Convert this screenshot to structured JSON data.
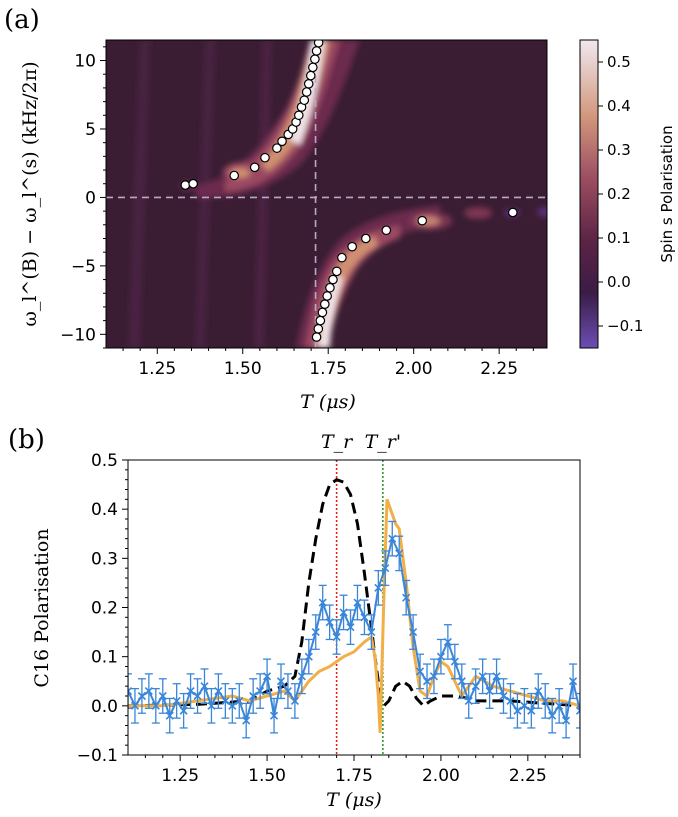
{
  "figure": {
    "panel_a_label": "(a)",
    "panel_b_label": "(b)"
  },
  "chart_data": [
    {
      "type": "heatmap",
      "panel": "(a)",
      "xlabel": "T (μs)",
      "ylabel": "ω_l^(B) − ω_l^(s) (kHz/2π)",
      "colorbar_label": "Spin s Polarisation",
      "xlim": [
        1.1,
        2.39
      ],
      "ylim": [
        -11,
        11.5
      ],
      "xticks": [
        "1.25",
        "1.50",
        "1.75",
        "2.00",
        "2.25"
      ],
      "xtick_values": [
        1.25,
        1.5,
        1.75,
        2.0,
        2.25
      ],
      "yticks": [
        "10",
        "5",
        "0",
        "−5",
        "−10"
      ],
      "ytick_values": [
        10,
        5,
        0,
        -5,
        -10
      ],
      "colorbar_ticks": [
        "0.5",
        "0.4",
        "0.3",
        "0.2",
        "0.1",
        "0.0",
        "−0.1"
      ],
      "colorbar_tick_values": [
        0.5,
        0.4,
        0.3,
        0.2,
        0.1,
        0.0,
        -0.1
      ],
      "colorbar_range": [
        -0.15,
        0.55
      ],
      "colors": {
        "background": "#3a1d33",
        "low": "#5a2f74",
        "mid": "#9b4a64",
        "high": "#d49a78",
        "peak": "#f1e6ec"
      },
      "reference_lines": {
        "x": 1.713,
        "y": 0
      },
      "points": [
        {
          "x": 1.332,
          "y": 0.9
        },
        {
          "x": 1.355,
          "y": 1.0
        },
        {
          "x": 1.475,
          "y": 1.6
        },
        {
          "x": 1.535,
          "y": 2.2
        },
        {
          "x": 1.565,
          "y": 2.9
        },
        {
          "x": 1.6,
          "y": 3.6
        },
        {
          "x": 1.615,
          "y": 4.1
        },
        {
          "x": 1.633,
          "y": 4.6
        },
        {
          "x": 1.646,
          "y": 5.0
        },
        {
          "x": 1.656,
          "y": 5.5
        },
        {
          "x": 1.664,
          "y": 6.0
        },
        {
          "x": 1.672,
          "y": 6.6
        },
        {
          "x": 1.68,
          "y": 7.1
        },
        {
          "x": 1.687,
          "y": 7.7
        },
        {
          "x": 1.693,
          "y": 8.3
        },
        {
          "x": 1.699,
          "y": 8.9
        },
        {
          "x": 1.705,
          "y": 9.5
        },
        {
          "x": 1.711,
          "y": 10.1
        },
        {
          "x": 1.716,
          "y": 10.7
        },
        {
          "x": 1.722,
          "y": 11.3
        },
        {
          "x": 1.716,
          "y": -10.2
        },
        {
          "x": 1.721,
          "y": -9.6
        },
        {
          "x": 1.727,
          "y": -9.0
        },
        {
          "x": 1.733,
          "y": -8.4
        },
        {
          "x": 1.74,
          "y": -7.8
        },
        {
          "x": 1.747,
          "y": -7.2
        },
        {
          "x": 1.755,
          "y": -6.6
        },
        {
          "x": 1.764,
          "y": -6.0
        },
        {
          "x": 1.775,
          "y": -5.4
        },
        {
          "x": 1.79,
          "y": -4.4
        },
        {
          "x": 1.82,
          "y": -3.6
        },
        {
          "x": 1.86,
          "y": -3.0
        },
        {
          "x": 1.92,
          "y": -2.4
        },
        {
          "x": 2.025,
          "y": -1.7
        },
        {
          "x": 2.29,
          "y": -1.1
        }
      ]
    },
    {
      "type": "line",
      "panel": "(b)",
      "xlabel": "T (μs)",
      "ylabel": "C16 Polarisation",
      "xlim": [
        1.1,
        2.4
      ],
      "ylim": [
        -0.1,
        0.5
      ],
      "xticks": [
        "1.25",
        "1.50",
        "1.75",
        "2.00",
        "2.25"
      ],
      "xtick_values": [
        1.25,
        1.5,
        1.75,
        2.0,
        2.25
      ],
      "yticks": [
        "0.5",
        "0.4",
        "0.3",
        "0.2",
        "0.1",
        "0.0",
        "−0.1"
      ],
      "ytick_values": [
        0.5,
        0.4,
        0.3,
        0.2,
        0.1,
        0.0,
        -0.1
      ],
      "annotations": [
        {
          "label": "T_r",
          "x": 1.7,
          "color": "#e0241c"
        },
        {
          "label": "T_r'",
          "x": 1.833,
          "color": "#2f9a2f"
        }
      ],
      "series": [
        {
          "style": "dashed",
          "color": "#000000",
          "x": [
            1.1,
            1.3,
            1.45,
            1.5,
            1.55,
            1.58,
            1.6,
            1.62,
            1.64,
            1.66,
            1.68,
            1.7,
            1.72,
            1.74,
            1.76,
            1.78,
            1.8,
            1.81,
            1.82,
            1.83,
            1.84,
            1.85,
            1.87,
            1.89,
            1.91,
            1.93,
            1.95,
            1.97,
            2.0,
            2.05,
            2.1,
            2.2,
            2.3,
            2.4
          ],
          "y": [
            0.0,
            0.003,
            0.01,
            0.03,
            0.04,
            0.06,
            0.13,
            0.25,
            0.34,
            0.41,
            0.45,
            0.46,
            0.455,
            0.43,
            0.37,
            0.27,
            0.16,
            0.1,
            0.05,
            0.01,
            0.003,
            0.01,
            0.04,
            0.05,
            0.04,
            0.015,
            0.0,
            0.01,
            0.02,
            0.02,
            0.01,
            0.01,
            0.005,
            0.0
          ]
        },
        {
          "style": "solid",
          "color": "#f2ae47",
          "x": [
            1.1,
            1.2,
            1.3,
            1.4,
            1.45,
            1.5,
            1.55,
            1.58,
            1.6,
            1.62,
            1.65,
            1.68,
            1.7,
            1.72,
            1.75,
            1.78,
            1.8,
            1.81,
            1.82,
            1.825,
            1.835,
            1.845,
            1.855,
            1.87,
            1.88,
            1.9,
            1.92,
            1.94,
            1.96,
            1.98,
            2.0,
            2.02,
            2.04,
            2.06,
            2.08,
            2.1,
            2.15,
            2.2,
            2.25,
            2.3,
            2.35,
            2.4
          ],
          "y": [
            0.0,
            0.0,
            0.01,
            0.02,
            0.01,
            0.02,
            0.03,
            0.01,
            0.03,
            0.05,
            0.07,
            0.08,
            0.09,
            0.1,
            0.11,
            0.13,
            0.14,
            0.1,
            0.02,
            -0.055,
            0.2,
            0.42,
            0.4,
            0.37,
            0.36,
            0.25,
            0.12,
            0.03,
            0.02,
            0.06,
            0.09,
            0.08,
            0.05,
            0.02,
            0.04,
            0.06,
            0.04,
            0.03,
            0.02,
            0.01,
            0.01,
            0.0
          ]
        },
        {
          "style": "markers-errorbars",
          "color": "#3a86d9",
          "x": [
            1.1,
            1.12,
            1.14,
            1.16,
            1.18,
            1.2,
            1.22,
            1.24,
            1.26,
            1.28,
            1.3,
            1.32,
            1.34,
            1.36,
            1.38,
            1.4,
            1.42,
            1.44,
            1.46,
            1.48,
            1.5,
            1.52,
            1.54,
            1.56,
            1.58,
            1.6,
            1.62,
            1.64,
            1.66,
            1.68,
            1.7,
            1.72,
            1.74,
            1.76,
            1.78,
            1.8,
            1.82,
            1.84,
            1.86,
            1.88,
            1.9,
            1.92,
            1.94,
            1.96,
            1.98,
            2.0,
            2.02,
            2.04,
            2.06,
            2.08,
            2.1,
            2.12,
            2.14,
            2.16,
            2.18,
            2.2,
            2.22,
            2.24,
            2.26,
            2.28,
            2.3,
            2.32,
            2.34,
            2.36,
            2.38,
            2.4
          ],
          "y": [
            0.03,
            0.0,
            0.02,
            0.03,
            0.0,
            0.02,
            -0.02,
            0.01,
            -0.01,
            0.03,
            0.02,
            0.04,
            0.0,
            0.03,
            0.01,
            0.0,
            0.01,
            -0.03,
            0.02,
            0.03,
            0.06,
            -0.02,
            0.05,
            0.03,
            0.01,
            0.06,
            0.1,
            0.15,
            0.21,
            0.17,
            0.14,
            0.19,
            0.16,
            0.21,
            0.18,
            0.15,
            0.24,
            0.28,
            0.34,
            0.31,
            0.22,
            0.15,
            0.07,
            0.05,
            0.06,
            0.1,
            0.13,
            0.09,
            0.05,
            0.01,
            0.04,
            0.06,
            0.03,
            0.06,
            0.02,
            0.01,
            -0.01,
            0.0,
            -0.01,
            0.03,
            0.01,
            -0.02,
            0.0,
            -0.03,
            0.05,
            -0.01
          ],
          "yerr": 0.035
        }
      ]
    }
  ]
}
